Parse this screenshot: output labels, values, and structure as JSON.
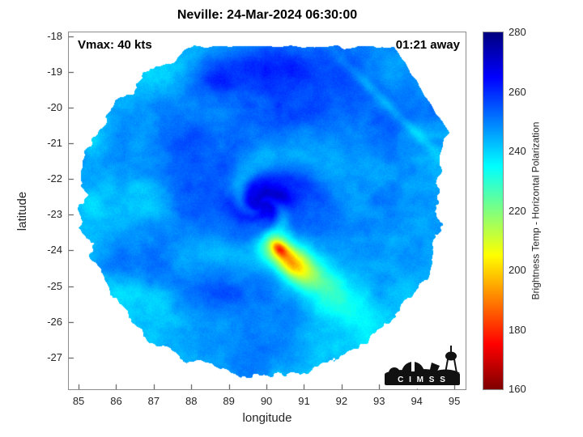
{
  "title": "Neville: 24-Mar-2024 06:30:00",
  "annotations": {
    "vmax": "Vmax: 40 kts",
    "eta": "01:21 away"
  },
  "axes": {
    "xlabel": "longitude",
    "ylabel": "latitude",
    "x_ticks": [
      85,
      86,
      87,
      88,
      89,
      90,
      91,
      92,
      93,
      94,
      95
    ],
    "y_ticks": [
      -18,
      -19,
      -20,
      -21,
      -22,
      -23,
      -24,
      -25,
      -26,
      -27
    ],
    "xlim": [
      84.74,
      95.3
    ],
    "ylim": [
      -27.89,
      -17.89
    ]
  },
  "colorbar": {
    "label": "Brightness Temp - Horizontal Polarization",
    "ticks": [
      160,
      180,
      200,
      220,
      240,
      260,
      280
    ],
    "min": 160,
    "max": 280
  },
  "logo": {
    "text": "C I M S S"
  },
  "chart_data": {
    "type": "heatmap",
    "title": "Neville: 24-Mar-2024 06:30:00",
    "xlabel": "longitude",
    "ylabel": "latitude",
    "xlim": [
      84.74,
      95.3
    ],
    "ylim": [
      -27.89,
      -17.89
    ],
    "value_label": "Brightness Temp - Horizontal Polarization",
    "value_range": [
      160,
      280
    ],
    "colormap": "jet-reversed (280 K = dark blue, 160 K = dark red)",
    "storm": {
      "name": "Neville",
      "datetime": "24-Mar-2024 06:30:00",
      "vmax_kts": 40,
      "time_offset": "01:21 away",
      "center_lonlat": [
        89.9,
        -22.8
      ]
    },
    "features": {
      "background_temp_k": 251,
      "radial_cooling_k": 6,
      "spiral": {
        "strength_k": 7,
        "twist": 2.0
      },
      "swath": {
        "center": [
          89.85,
          -22.75
        ],
        "radius_deg": 4.75,
        "top_cut_lat": -18.28,
        "extension_polygon": [
          [
            90.8,
            -18.28
          ],
          [
            93.4,
            -18.28
          ],
          [
            94.85,
            -20.7
          ],
          [
            94.2,
            -23.4
          ],
          [
            91.6,
            -25.0
          ]
        ]
      },
      "blobs": [
        {
          "lon": 89.85,
          "lat": -22.75,
          "sx": 0.5,
          "sy": 0.4,
          "rot": 0,
          "dT": 15
        },
        {
          "lon": 90.4,
          "lat": -22.2,
          "sx": 0.7,
          "sy": 0.35,
          "rot": -0.5,
          "dT": 9
        },
        {
          "lon": 90.1,
          "lat": -18.85,
          "sx": 1.0,
          "sy": 0.45,
          "rot": 0,
          "dT": 11
        },
        {
          "lon": 88.7,
          "lat": -19.3,
          "sx": 0.5,
          "sy": 0.3,
          "rot": 0,
          "dT": 7
        },
        {
          "lon": 92.7,
          "lat": -19.5,
          "sx": 1.3,
          "sy": 0.55,
          "rot": 0.8,
          "dT": 6
        },
        {
          "lon": 93.2,
          "lat": -19.9,
          "sx": 1.9,
          "sy": 0.1,
          "rot": 0.8,
          "dT": -7
        },
        {
          "lon": 90.6,
          "lat": -24.25,
          "sx": 0.55,
          "sy": 0.27,
          "rot": 0.84,
          "dT": -45
        },
        {
          "lon": 90.35,
          "lat": -23.95,
          "sx": 0.17,
          "sy": 0.11,
          "rot": 0.84,
          "dT": -27
        },
        {
          "lon": 91.55,
          "lat": -24.95,
          "sx": 0.95,
          "sy": 0.45,
          "rot": 0.84,
          "dT": -16
        },
        {
          "lon": 91.3,
          "lat": -24.8,
          "sx": 1.6,
          "sy": 0.95,
          "rot": 0.84,
          "dT": -7
        },
        {
          "lon": 87.3,
          "lat": -25.5,
          "sx": 1.3,
          "sy": 0.45,
          "rot": 0.2,
          "dT": -6
        },
        {
          "lon": 86.3,
          "lat": -22.6,
          "sx": 0.8,
          "sy": 0.9,
          "rot": 0,
          "dT": -4
        }
      ]
    }
  }
}
